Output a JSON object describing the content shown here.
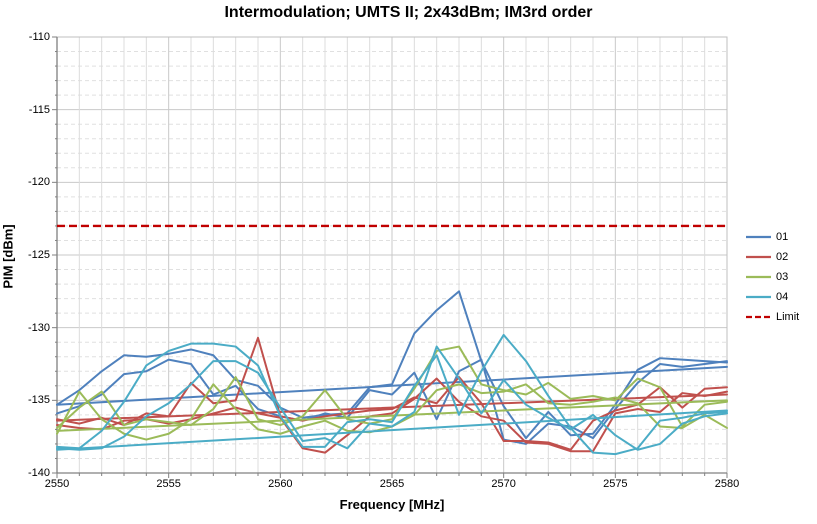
{
  "title": "Intermodulation; UMTS II; 2x43dBm; IM3rd order",
  "chart_data": {
    "type": "line",
    "title": "Intermodulation; UMTS II; 2x43dBm; IM3rd order",
    "xlabel": "Frequency [MHz]",
    "ylabel": "PIM [dBm]",
    "xlim": [
      2550,
      2580
    ],
    "ylim": [
      -140,
      -110
    ],
    "x_major_ticks": [
      2550,
      2555,
      2560,
      2565,
      2570,
      2575,
      2580
    ],
    "y_major_ticks": [
      -110,
      -115,
      -120,
      -125,
      -130,
      -135,
      -140
    ],
    "x_minor_step": 1,
    "y_minor_step": 1,
    "grid": "major and minor gridlines on",
    "legend_position": "right",
    "x": [
      2550,
      2551,
      2552,
      2553,
      2554,
      2555,
      2556,
      2557,
      2558,
      2559,
      2560,
      2561,
      2562,
      2563,
      2564,
      2565,
      2566,
      2567,
      2568,
      2569,
      2570,
      2571,
      2572,
      2573,
      2574,
      2575,
      2576,
      2577,
      2578,
      2579,
      2580
    ],
    "series": [
      {
        "name": "01",
        "color": "#4F81BD",
        "traces": [
          [
            -135.3,
            -134.3,
            -133.0,
            -131.9,
            -132.0,
            -131.8,
            -131.5,
            -131.9,
            -133.6,
            -134.0,
            -135.5,
            -136.2,
            -136.0,
            -135.9,
            -134.1,
            -133.9,
            -130.4,
            -128.8,
            -127.5,
            -132.3,
            -135.4,
            -137.6,
            -135.8,
            -137.4,
            -137.3,
            -135.3,
            -132.9,
            -132.1,
            -132.2,
            -132.3,
            -132.4
          ],
          [
            -135.9,
            -135.4,
            -134.6,
            -133.2,
            -133.0,
            -132.2,
            -132.5,
            -134.6,
            -134.0,
            -135.6,
            -136.1,
            -136.4,
            -135.9,
            -136.2,
            -134.3,
            -134.6,
            -133.1,
            -136.3,
            -133.0,
            -132.2,
            -137.7,
            -138.0,
            -136.6,
            -136.8,
            -137.6,
            -135.6,
            -133.8,
            -132.5,
            -132.7,
            -132.5,
            -132.3
          ]
        ],
        "trend": [
          -135.3,
          -132.7
        ]
      },
      {
        "name": "02",
        "color": "#C0504D",
        "traces": [
          [
            -136.3,
            -136.6,
            -136.2,
            -136.7,
            -135.9,
            -136.1,
            -133.8,
            -135.2,
            -135.0,
            -130.7,
            -136.1,
            -136.4,
            -136.1,
            -135.9,
            -135.7,
            -135.6,
            -134.8,
            -135.2,
            -133.4,
            -135.2,
            -137.8,
            -137.8,
            -137.9,
            -138.4,
            -136.4,
            -135.7,
            -135.3,
            -134.1,
            -135.5,
            -134.2,
            -134.1
          ],
          [
            -136.7,
            -136.9,
            -137.0,
            -136.4,
            -136.3,
            -136.6,
            -136.3,
            -135.9,
            -135.5,
            -135.9,
            -136.2,
            -138.3,
            -138.6,
            -137.4,
            -136.1,
            -135.9,
            -134.9,
            -133.5,
            -135.1,
            -136.1,
            -136.4,
            -137.9,
            -138.0,
            -138.5,
            -138.5,
            -135.9,
            -135.6,
            -135.8,
            -134.5,
            -134.7,
            -134.4
          ]
        ],
        "trend": [
          -136.4,
          -134.6
        ]
      },
      {
        "name": "03",
        "color": "#9BBB59",
        "traces": [
          [
            -136.9,
            -135.5,
            -134.4,
            -136.7,
            -136.3,
            -136.5,
            -136.7,
            -135.6,
            -133.4,
            -136.3,
            -136.7,
            -136.1,
            -134.3,
            -136.3,
            -136.6,
            -136.3,
            -134.2,
            -131.6,
            -131.3,
            -133.9,
            -134.3,
            -134.6,
            -133.8,
            -134.9,
            -134.7,
            -135.0,
            -133.5,
            -134.1,
            -136.8,
            -135.3,
            -135.1
          ],
          [
            -137.3,
            -134.4,
            -136.3,
            -137.3,
            -137.7,
            -137.3,
            -136.3,
            -133.9,
            -135.6,
            -137.0,
            -137.3,
            -136.8,
            -136.4,
            -137.1,
            -137.2,
            -136.8,
            -136.0,
            -134.3,
            -133.9,
            -134.5,
            -134.4,
            -133.9,
            -135.2,
            -135.3,
            -135.1,
            -134.8,
            -135.2,
            -136.8,
            -136.9,
            -136.0,
            -136.9
          ]
        ],
        "trend": [
          -137.1,
          -135.0
        ]
      },
      {
        "name": "04",
        "color": "#4BACC6",
        "traces": [
          [
            -138.2,
            -138.3,
            -137.1,
            -135.1,
            -132.6,
            -131.6,
            -131.1,
            -131.1,
            -131.3,
            -132.6,
            -136.1,
            -138.2,
            -138.2,
            -136.5,
            -136.3,
            -136.5,
            -134.0,
            -131.9,
            -136.0,
            -133.0,
            -130.5,
            -132.3,
            -134.7,
            -136.9,
            -138.6,
            -138.7,
            -138.3,
            -136.4,
            -136.2,
            -135.9,
            -135.8
          ],
          [
            -138.3,
            -138.4,
            -138.3,
            -137.5,
            -136.1,
            -135.2,
            -133.9,
            -132.3,
            -132.3,
            -133.1,
            -135.5,
            -137.8,
            -137.6,
            -138.3,
            -136.6,
            -136.8,
            -135.8,
            -131.3,
            -133.5,
            -135.9,
            -133.6,
            -135.3,
            -136.2,
            -137.0,
            -136.0,
            -137.4,
            -138.4,
            -138.0,
            -136.6,
            -136.1,
            -135.9
          ]
        ],
        "trend": [
          -138.4,
          -135.7
        ]
      }
    ],
    "limit": {
      "label": "Limit",
      "value": -123,
      "color": "#C00000",
      "style": "dashed"
    }
  },
  "legend": {
    "labels": [
      "01",
      "02",
      "03",
      "04",
      "Limit"
    ]
  }
}
